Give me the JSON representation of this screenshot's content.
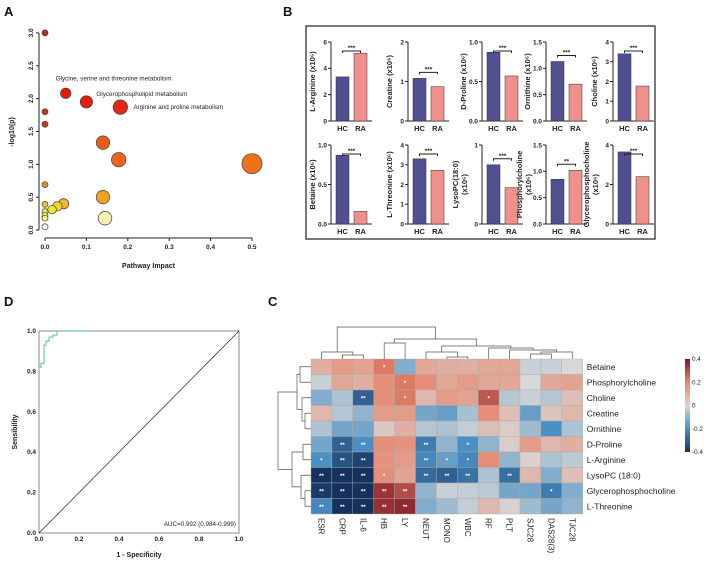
{
  "panels": {
    "A": "A",
    "B": "B",
    "C": "C",
    "D": "D"
  },
  "chart_data": [
    {
      "type": "scatter",
      "panel": "A",
      "xlabel": "Pathway Impact",
      "ylabel": "-log10(p)",
      "xlim": [
        0,
        0.5
      ],
      "ylim": [
        0,
        3.0
      ],
      "xticks": [
        "0.0",
        "0.1",
        "0.2",
        "0.3",
        "0.4",
        "0.5"
      ],
      "yticks": [
        "0.0",
        "0.5",
        "1.0",
        "1.5",
        "2.0",
        "2.5",
        "3.0"
      ],
      "grid": false,
      "points": [
        {
          "x": 0.0,
          "y": 3.0,
          "color": "#b8281e"
        },
        {
          "x": 0.05,
          "y": 2.08,
          "color": "#e41a10",
          "label": "Glycine, serine and threonine metabolism"
        },
        {
          "x": 0.1,
          "y": 1.95,
          "color": "#e0200e",
          "label": "Glycerophospholipid metabolism"
        },
        {
          "x": 0.182,
          "y": 1.87,
          "color": "#e2261a",
          "label": "Arginine and proline metabolism"
        },
        {
          "x": 0.0,
          "y": 1.8,
          "color": "#c8321e"
        },
        {
          "x": 0.0,
          "y": 1.61,
          "color": "#c8321e"
        },
        {
          "x": 0.14,
          "y": 1.33,
          "color": "#ee5a18"
        },
        {
          "x": 0.178,
          "y": 1.07,
          "color": "#ef6418"
        },
        {
          "x": 0.5,
          "y": 1.01,
          "color": "#f07018"
        },
        {
          "x": 0.0,
          "y": 0.69,
          "color": "#e08a30"
        },
        {
          "x": 0.14,
          "y": 0.5,
          "color": "#f2a020"
        },
        {
          "x": 0.045,
          "y": 0.4,
          "color": "#f2b428"
        },
        {
          "x": 0.03,
          "y": 0.36,
          "color": "#f2d428"
        },
        {
          "x": 0.017,
          "y": 0.31,
          "color": "#f0e634"
        },
        {
          "x": 0.0,
          "y": 0.39,
          "color": "#f0c032"
        },
        {
          "x": 0.0,
          "y": 0.28,
          "color": "#f2e642"
        },
        {
          "x": 0.0,
          "y": 0.22,
          "color": "#f4f064"
        },
        {
          "x": 0.0,
          "y": 0.18,
          "color": "#f6f27a"
        },
        {
          "x": 0.145,
          "y": 0.18,
          "color": "#f8f0b4"
        },
        {
          "x": 0.0,
          "y": 0.05,
          "color": "#ffffff"
        }
      ]
    },
    {
      "type": "bar",
      "panel": "B",
      "categories": [
        "HC",
        "RA"
      ],
      "colors": {
        "HC": "#4f4f92",
        "RA": "#f0908c"
      },
      "subplots": [
        {
          "ylabel": "L-Arginine",
          "unit": "(x10⁶)",
          "ylim": [
            0,
            6
          ],
          "ticks": [
            "0",
            "2",
            "4",
            "6"
          ],
          "values": [
            3.35,
            5.15
          ],
          "significance": "***"
        },
        {
          "ylabel": "Creatine",
          "unit": "(x10⁶)",
          "ylim": [
            0,
            2
          ],
          "ticks": [
            "0",
            "1",
            "2"
          ],
          "values": [
            1.08,
            0.87
          ],
          "significance": "***"
        },
        {
          "ylabel": "D-Proline",
          "unit": "(x10⁶)",
          "ylim": [
            0,
            1.0
          ],
          "ticks": [
            "0.0",
            "0.5",
            "1.0"
          ],
          "values": [
            0.87,
            0.57
          ],
          "significance": "***"
        },
        {
          "ylabel": "Ornithine",
          "unit": "(x10⁵)",
          "ylim": [
            0,
            1.5
          ],
          "ticks": [
            "0.0",
            "0.5",
            "1.0",
            "1.5"
          ],
          "values": [
            1.13,
            0.7
          ],
          "significance": "***"
        },
        {
          "ylabel": "Choline",
          "unit": "(x10⁶)",
          "ylim": [
            0,
            4
          ],
          "ticks": [
            "0",
            "1",
            "2",
            "3",
            "4"
          ],
          "values": [
            3.4,
            1.77
          ],
          "significance": "***"
        },
        {
          "ylabel": "Betaine",
          "unit": "(x10⁶)",
          "ylim": [
            0,
            1.0
          ],
          "ticks": [
            "0.0",
            "0.5",
            "1.0"
          ],
          "values": [
            0.87,
            0.16
          ],
          "significance": "***"
        },
        {
          "ylabel": "L-Threonine",
          "unit": "(x10⁶)",
          "ylim": [
            0,
            4
          ],
          "ticks": [
            "0",
            "1",
            "2",
            "3",
            "4"
          ],
          "values": [
            3.3,
            2.72
          ],
          "significance": "***"
        },
        {
          "ylabel": "LysoPC(18:0)",
          "unit": "(x10⁶)",
          "ylim": [
            0,
            1
          ],
          "ticks": [
            "0",
            "1"
          ],
          "values": [
            0.75,
            0.46
          ],
          "significance": "***",
          "wrap": true
        },
        {
          "ylabel": "Phosphorylcholine",
          "unit": "(x10⁶)",
          "ylim": [
            0,
            1.5
          ],
          "ticks": [
            "0.0",
            "0.5",
            "1.0",
            "1.5"
          ],
          "values": [
            0.85,
            1.02
          ],
          "significance": "**",
          "wrap": true
        },
        {
          "ylabel": "Glycerophosphocholine",
          "unit": "(x10⁶)",
          "ylim": [
            0,
            4
          ],
          "ticks": [
            "0",
            "2",
            "4"
          ],
          "values": [
            3.65,
            2.4
          ],
          "significance": "***",
          "wrap": true
        }
      ]
    },
    {
      "type": "heatmap",
      "panel": "C",
      "columns": [
        "ESR",
        "CRP",
        "IL-6",
        "HB",
        "LY",
        "NEUT",
        "MONO",
        "WBC",
        "RF",
        "PLT",
        "SJC28",
        "DAS28(3)",
        "TJC28"
      ],
      "rows": [
        "Betaine",
        "Phosphorylcholine",
        "Choline",
        "Creatine",
        "Ornithine",
        "D-Proline",
        "L-Arginine",
        "LysoPC (18:0)",
        "Glycerophosphocholine",
        "L-Threonine"
      ],
      "values": [
        [
          0.1,
          0.15,
          0.13,
          0.22,
          -0.12,
          0.12,
          0.1,
          0.1,
          0.12,
          0.12,
          -0.02,
          -0.02,
          0.0
        ],
        [
          -0.02,
          0.12,
          0.1,
          0.18,
          0.22,
          0.18,
          0.12,
          0.15,
          0.12,
          0.12,
          0.0,
          0.12,
          0.13
        ],
        [
          -0.12,
          -0.06,
          -0.3,
          0.18,
          0.22,
          0.08,
          0.15,
          0.13,
          0.28,
          -0.05,
          -0.02,
          -0.05,
          0.06
        ],
        [
          0.08,
          -0.05,
          -0.1,
          0.15,
          0.15,
          -0.14,
          -0.16,
          -0.07,
          0.18,
          0.06,
          -0.16,
          0.05,
          0.08
        ],
        [
          -0.06,
          -0.14,
          -0.14,
          0.04,
          0.1,
          -0.05,
          -0.06,
          -0.03,
          0.06,
          0.03,
          -0.08,
          -0.2,
          -0.06
        ],
        [
          -0.14,
          -0.3,
          -0.2,
          0.18,
          0.17,
          -0.24,
          -0.1,
          -0.2,
          -0.1,
          0.03,
          0.15,
          0.08,
          0.1
        ],
        [
          -0.2,
          -0.33,
          -0.36,
          0.17,
          0.15,
          -0.22,
          -0.16,
          -0.22,
          0.18,
          -0.1,
          0.02,
          -0.06,
          -0.04
        ],
        [
          -0.42,
          -0.44,
          -0.44,
          0.18,
          0.13,
          -0.28,
          -0.3,
          -0.26,
          -0.06,
          -0.27,
          0.08,
          -0.12,
          0.06
        ],
        [
          -0.38,
          -0.42,
          -0.44,
          0.34,
          0.3,
          -0.1,
          -0.02,
          -0.03,
          -0.04,
          -0.14,
          -0.14,
          -0.24,
          -0.12
        ],
        [
          -0.22,
          -0.42,
          -0.44,
          0.35,
          0.36,
          -0.12,
          -0.08,
          -0.03,
          0.08,
          0.02,
          -0.08,
          -0.14,
          -0.1
        ]
      ],
      "significance": [
        [
          "",
          "",
          "",
          "*",
          "",
          "",
          "",
          "",
          "",
          "",
          "",
          "",
          ""
        ],
        [
          "",
          "",
          "",
          "",
          "*",
          "",
          "",
          "",
          "",
          "",
          "",
          "",
          ""
        ],
        [
          "",
          "",
          "**",
          "",
          "*",
          "",
          "",
          "",
          "*",
          "",
          "",
          "",
          ""
        ],
        [
          "",
          "",
          "",
          "",
          "",
          "",
          "",
          "",
          "",
          "",
          "",
          "",
          ""
        ],
        [
          "",
          "",
          "",
          "",
          "",
          "",
          "",
          "",
          "",
          "",
          "",
          "",
          ""
        ],
        [
          "",
          "**",
          "**",
          "",
          "",
          "**",
          "",
          "*",
          "",
          "",
          "",
          "",
          ""
        ],
        [
          "*",
          "**",
          "**",
          "",
          "",
          "**",
          "*",
          "*",
          "",
          "",
          "",
          "",
          ""
        ],
        [
          "**",
          "**",
          "**",
          "*",
          "",
          "**",
          "**",
          "**",
          "",
          "**",
          "",
          "",
          ""
        ],
        [
          "**",
          "**",
          "**",
          "**",
          "**",
          "",
          "",
          "",
          "",
          "",
          "",
          "*",
          ""
        ],
        [
          "**",
          "**",
          "**",
          "**",
          "**",
          "",
          "",
          "",
          "",
          "",
          "",
          "",
          ""
        ]
      ],
      "colorbar": {
        "range": [
          -0.4,
          0.4
        ],
        "ticks": [
          "0.4",
          "0.2",
          "0",
          "-0.2",
          "-0.4"
        ],
        "colors": [
          "#15325f",
          "#4a90c4",
          "#d8d8d8",
          "#e8866c",
          "#7d1220"
        ]
      }
    },
    {
      "type": "line",
      "panel": "D",
      "xlabel": "1 - Specificity",
      "ylabel": "Sensibility",
      "xlim": [
        0,
        1.0
      ],
      "ylim": [
        0,
        1.0
      ],
      "xticks": [
        "0.0",
        "0.2",
        "0.4",
        "0.6",
        "0.8",
        "1.0"
      ],
      "yticks": [
        "0.0",
        "0.2",
        "0.4",
        "0.6",
        "0.8",
        "1.0"
      ],
      "annotation": "AUC=0.992 (0.984-0.999)",
      "series": [
        {
          "color": "#6cc8b8",
          "x": [
            0,
            0.01,
            0.01,
            0.025,
            0.025,
            0.035,
            0.035,
            0.05,
            0.05,
            0.07,
            0.07,
            0.09,
            0.09,
            0.25
          ],
          "y": [
            0.82,
            0.82,
            0.84,
            0.84,
            0.93,
            0.93,
            0.95,
            0.95,
            0.97,
            0.97,
            0.98,
            0.98,
            1.0,
            1.0
          ]
        },
        {
          "color": "#222222",
          "x": [
            0,
            1
          ],
          "y": [
            0,
            1
          ]
        }
      ]
    }
  ]
}
